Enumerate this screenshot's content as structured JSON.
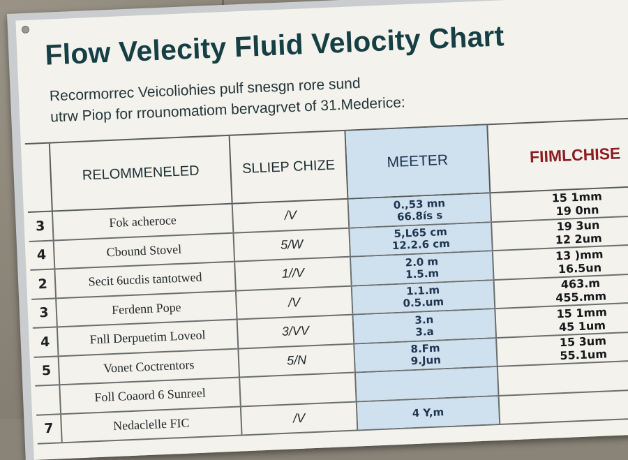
{
  "sign": {
    "title": "Flow Velecity Fluid Velocity Chart",
    "subtitle_lines": [
      "Recormorrec Veicoliohies pulf snesgn rore sund",
      "utrw Piop for rrounomatiom bervagrvet of 31.Mederice:"
    ]
  },
  "table": {
    "headers": [
      "",
      "RELOMMENELED",
      "SLLIEP CHIZE",
      "MEETER",
      "FIIMLCHISE"
    ],
    "rows": [
      {
        "num": "3",
        "rec": "Fok acheroce",
        "slip": "/V",
        "meter": [
          "0.,53 mn",
          "66.8ís s"
        ],
        "film": [
          "15 1mm",
          "19 0nn"
        ]
      },
      {
        "num": "4",
        "rec": "Cbound Stovel",
        "slip": "5/W",
        "meter": [
          "5,L65 cm",
          "12.2.6 cm"
        ],
        "film": [
          "19 3un",
          "12 2um"
        ]
      },
      {
        "num": "2",
        "rec": "Secit 6ucdis tantotwed",
        "slip": "1//V",
        "meter": [
          "2.0 m",
          "1.5.m"
        ],
        "film": [
          "13 )mm",
          "16.5un"
        ]
      },
      {
        "num": "3",
        "rec": "Ferdenn Pope",
        "slip": "/V",
        "meter": [
          "1.1.m",
          "0.5.um"
        ],
        "film": [
          "463.m",
          "455.mm"
        ]
      },
      {
        "num": "4",
        "rec": "Fnll Derpuetim Loveol",
        "slip": "3/VV",
        "meter": [
          "3.n",
          "3.a"
        ],
        "film": [
          "15 1mm",
          "45 1um"
        ]
      },
      {
        "num": "5",
        "rec": "Vonet Coctrentors",
        "slip": "5/N",
        "meter": [
          "8.Fm",
          "9.Jun"
        ],
        "film": [
          "15 3um",
          "55.1um"
        ]
      },
      {
        "num": "",
        "rec": "Foll Coaord 6 Sunreel",
        "slip": "",
        "meter": [],
        "film": []
      },
      {
        "num": "7",
        "rec": "Nedaclelle FIC",
        "slip": "/V",
        "meter": [
          "4 Y,m"
        ],
        "film": []
      }
    ]
  }
}
